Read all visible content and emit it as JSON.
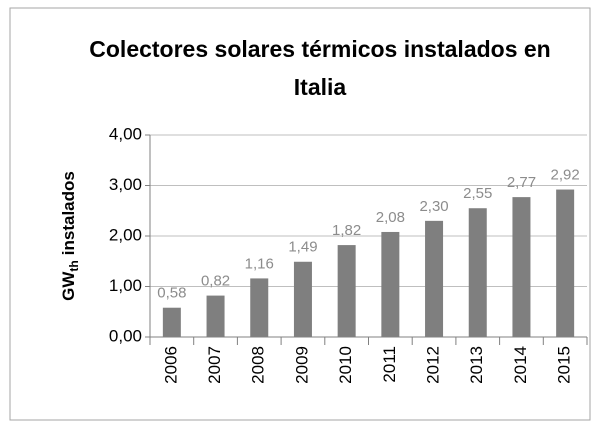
{
  "chart_data": {
    "type": "bar",
    "title": "Colectores solares térmicos instalados en Italia",
    "y_label": [
      "GW",
      "th",
      "instalados"
    ],
    "categories": [
      "2006",
      "2007",
      "2008",
      "2009",
      "2010",
      "2011",
      "2012",
      "2013",
      "2014",
      "2015"
    ],
    "values": [
      0.58,
      0.82,
      1.16,
      1.49,
      1.82,
      2.08,
      2.3,
      2.55,
      2.77,
      2.92
    ],
    "value_labels": [
      "0,58",
      "0,82",
      "1,16",
      "1,49",
      "1,82",
      "2,08",
      "2,30",
      "2,55",
      "2,77",
      "2,92"
    ],
    "color": "#7f7f7f",
    "ylim": [
      0,
      4
    ],
    "yticks": [
      {
        "value": 0,
        "label": "0,00"
      },
      {
        "value": 1,
        "label": "1,00"
      },
      {
        "value": 2,
        "label": "2,00"
      },
      {
        "value": 3,
        "label": "3,00"
      },
      {
        "value": 4,
        "label": "4,00"
      }
    ],
    "grid": true
  }
}
